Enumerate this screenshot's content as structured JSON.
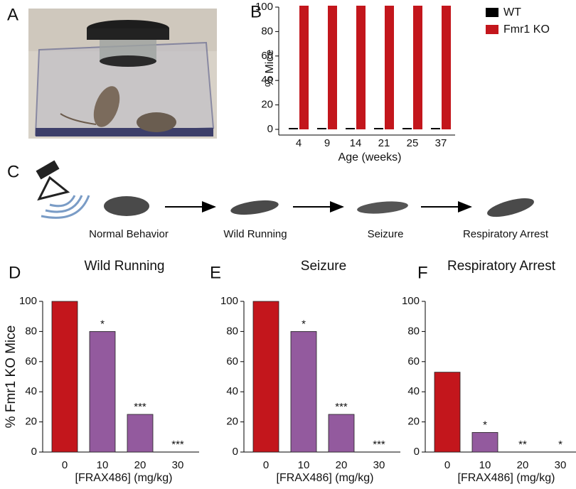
{
  "panel_labels": [
    "A",
    "B",
    "C",
    "D",
    "E",
    "F"
  ],
  "stages": [
    "Normal Behavior",
    "Wild Running",
    "Seizure",
    "Respiratory Arrest"
  ],
  "chart_data": [
    {
      "type": "grouped-bar",
      "ylabel": "% Mice",
      "xlabel": "Age (weeks)",
      "categories": [
        "4",
        "9",
        "14",
        "21",
        "25",
        "37"
      ],
      "series": [
        {
          "name": "WT",
          "color": "#000000",
          "values": [
            0,
            0,
            0,
            0,
            0,
            0
          ]
        },
        {
          "name": "Fmr1 KO",
          "color": "#c3161c",
          "values": [
            100,
            100,
            100,
            100,
            100,
            100
          ]
        }
      ],
      "ylim": [
        0,
        100
      ],
      "yticks": [
        0,
        20,
        40,
        60,
        80,
        100
      ],
      "legend": "right"
    },
    {
      "type": "bar",
      "title": "Wild Running",
      "ylabel": "% Fmr1 KO Mice",
      "xlabel": "[FRAX486] (mg/kg)",
      "categories": [
        "0",
        "10",
        "20",
        "30"
      ],
      "values": [
        100,
        80,
        25,
        0
      ],
      "colors": [
        "#c3161c",
        "#935a9e",
        "#935a9e",
        "#935a9e"
      ],
      "significance": [
        null,
        "*",
        "***",
        "***"
      ],
      "ylim": [
        0,
        100
      ],
      "yticks": [
        0,
        20,
        40,
        60,
        80,
        100
      ]
    },
    {
      "type": "bar",
      "title": "Seizure",
      "xlabel": "[FRAX486] (mg/kg)",
      "categories": [
        "0",
        "10",
        "20",
        "30"
      ],
      "values": [
        100,
        80,
        25,
        0
      ],
      "colors": [
        "#c3161c",
        "#935a9e",
        "#935a9e",
        "#935a9e"
      ],
      "significance": [
        null,
        "*",
        "***",
        "***"
      ],
      "ylim": [
        0,
        100
      ],
      "yticks": [
        0,
        20,
        40,
        60,
        80,
        100
      ]
    },
    {
      "type": "bar",
      "title": "Respiratory Arrest",
      "xlabel": "[FRAX486] (mg/kg)",
      "categories": [
        "0",
        "10",
        "20",
        "30"
      ],
      "values": [
        53,
        13,
        0,
        0
      ],
      "colors": [
        "#c3161c",
        "#935a9e",
        "#935a9e",
        "#935a9e"
      ],
      "significance": [
        null,
        "*",
        "**",
        "*"
      ],
      "ylim": [
        0,
        100
      ],
      "yticks": [
        0,
        20,
        40,
        60,
        80,
        100
      ]
    }
  ]
}
